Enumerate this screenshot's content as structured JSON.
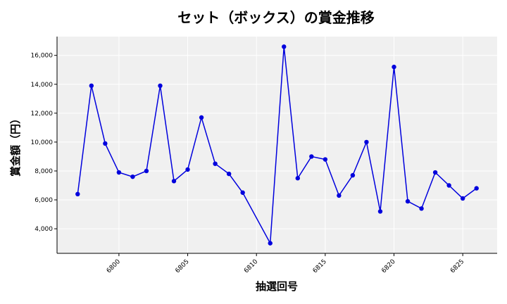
{
  "chart_data": {
    "type": "line",
    "title": "セット（ボックス）の賞金推移",
    "xlabel": "抽選回号",
    "ylabel": "賞金額（円）",
    "x": [
      6797,
      6798,
      6799,
      6800,
      6801,
      6802,
      6803,
      6804,
      6805,
      6806,
      6807,
      6808,
      6809,
      6811,
      6812,
      6813,
      6814,
      6815,
      6816,
      6817,
      6818,
      6819,
      6820,
      6821,
      6822,
      6823,
      6824,
      6825,
      6826
    ],
    "series": [
      {
        "values": [
          6400,
          13900,
          9900,
          7900,
          7600,
          8000,
          13900,
          7300,
          8100,
          11700,
          8500,
          7800,
          6500,
          3000,
          16600,
          7500,
          9000,
          8800,
          6300,
          7700,
          10000,
          5200,
          15200,
          5900,
          5400,
          7900,
          7000,
          6100,
          6800
        ],
        "color": "#0000dd"
      }
    ],
    "xlim": [
      6795.5,
      6827.5
    ],
    "ylim": [
      2300,
      17300
    ],
    "xticks": [
      6800,
      6805,
      6810,
      6815,
      6820,
      6825
    ],
    "xtick_labels": [
      "6800",
      "6805",
      "6810",
      "6815",
      "6820",
      "6825"
    ],
    "yticks": [
      4000,
      6000,
      8000,
      10000,
      12000,
      14000,
      16000
    ],
    "ytick_labels": [
      "4,000",
      "6,000",
      "8,000",
      "10,000",
      "12,000",
      "14,000",
      "16,000"
    ],
    "grid": true,
    "plot_background": "#f0f0f0"
  }
}
